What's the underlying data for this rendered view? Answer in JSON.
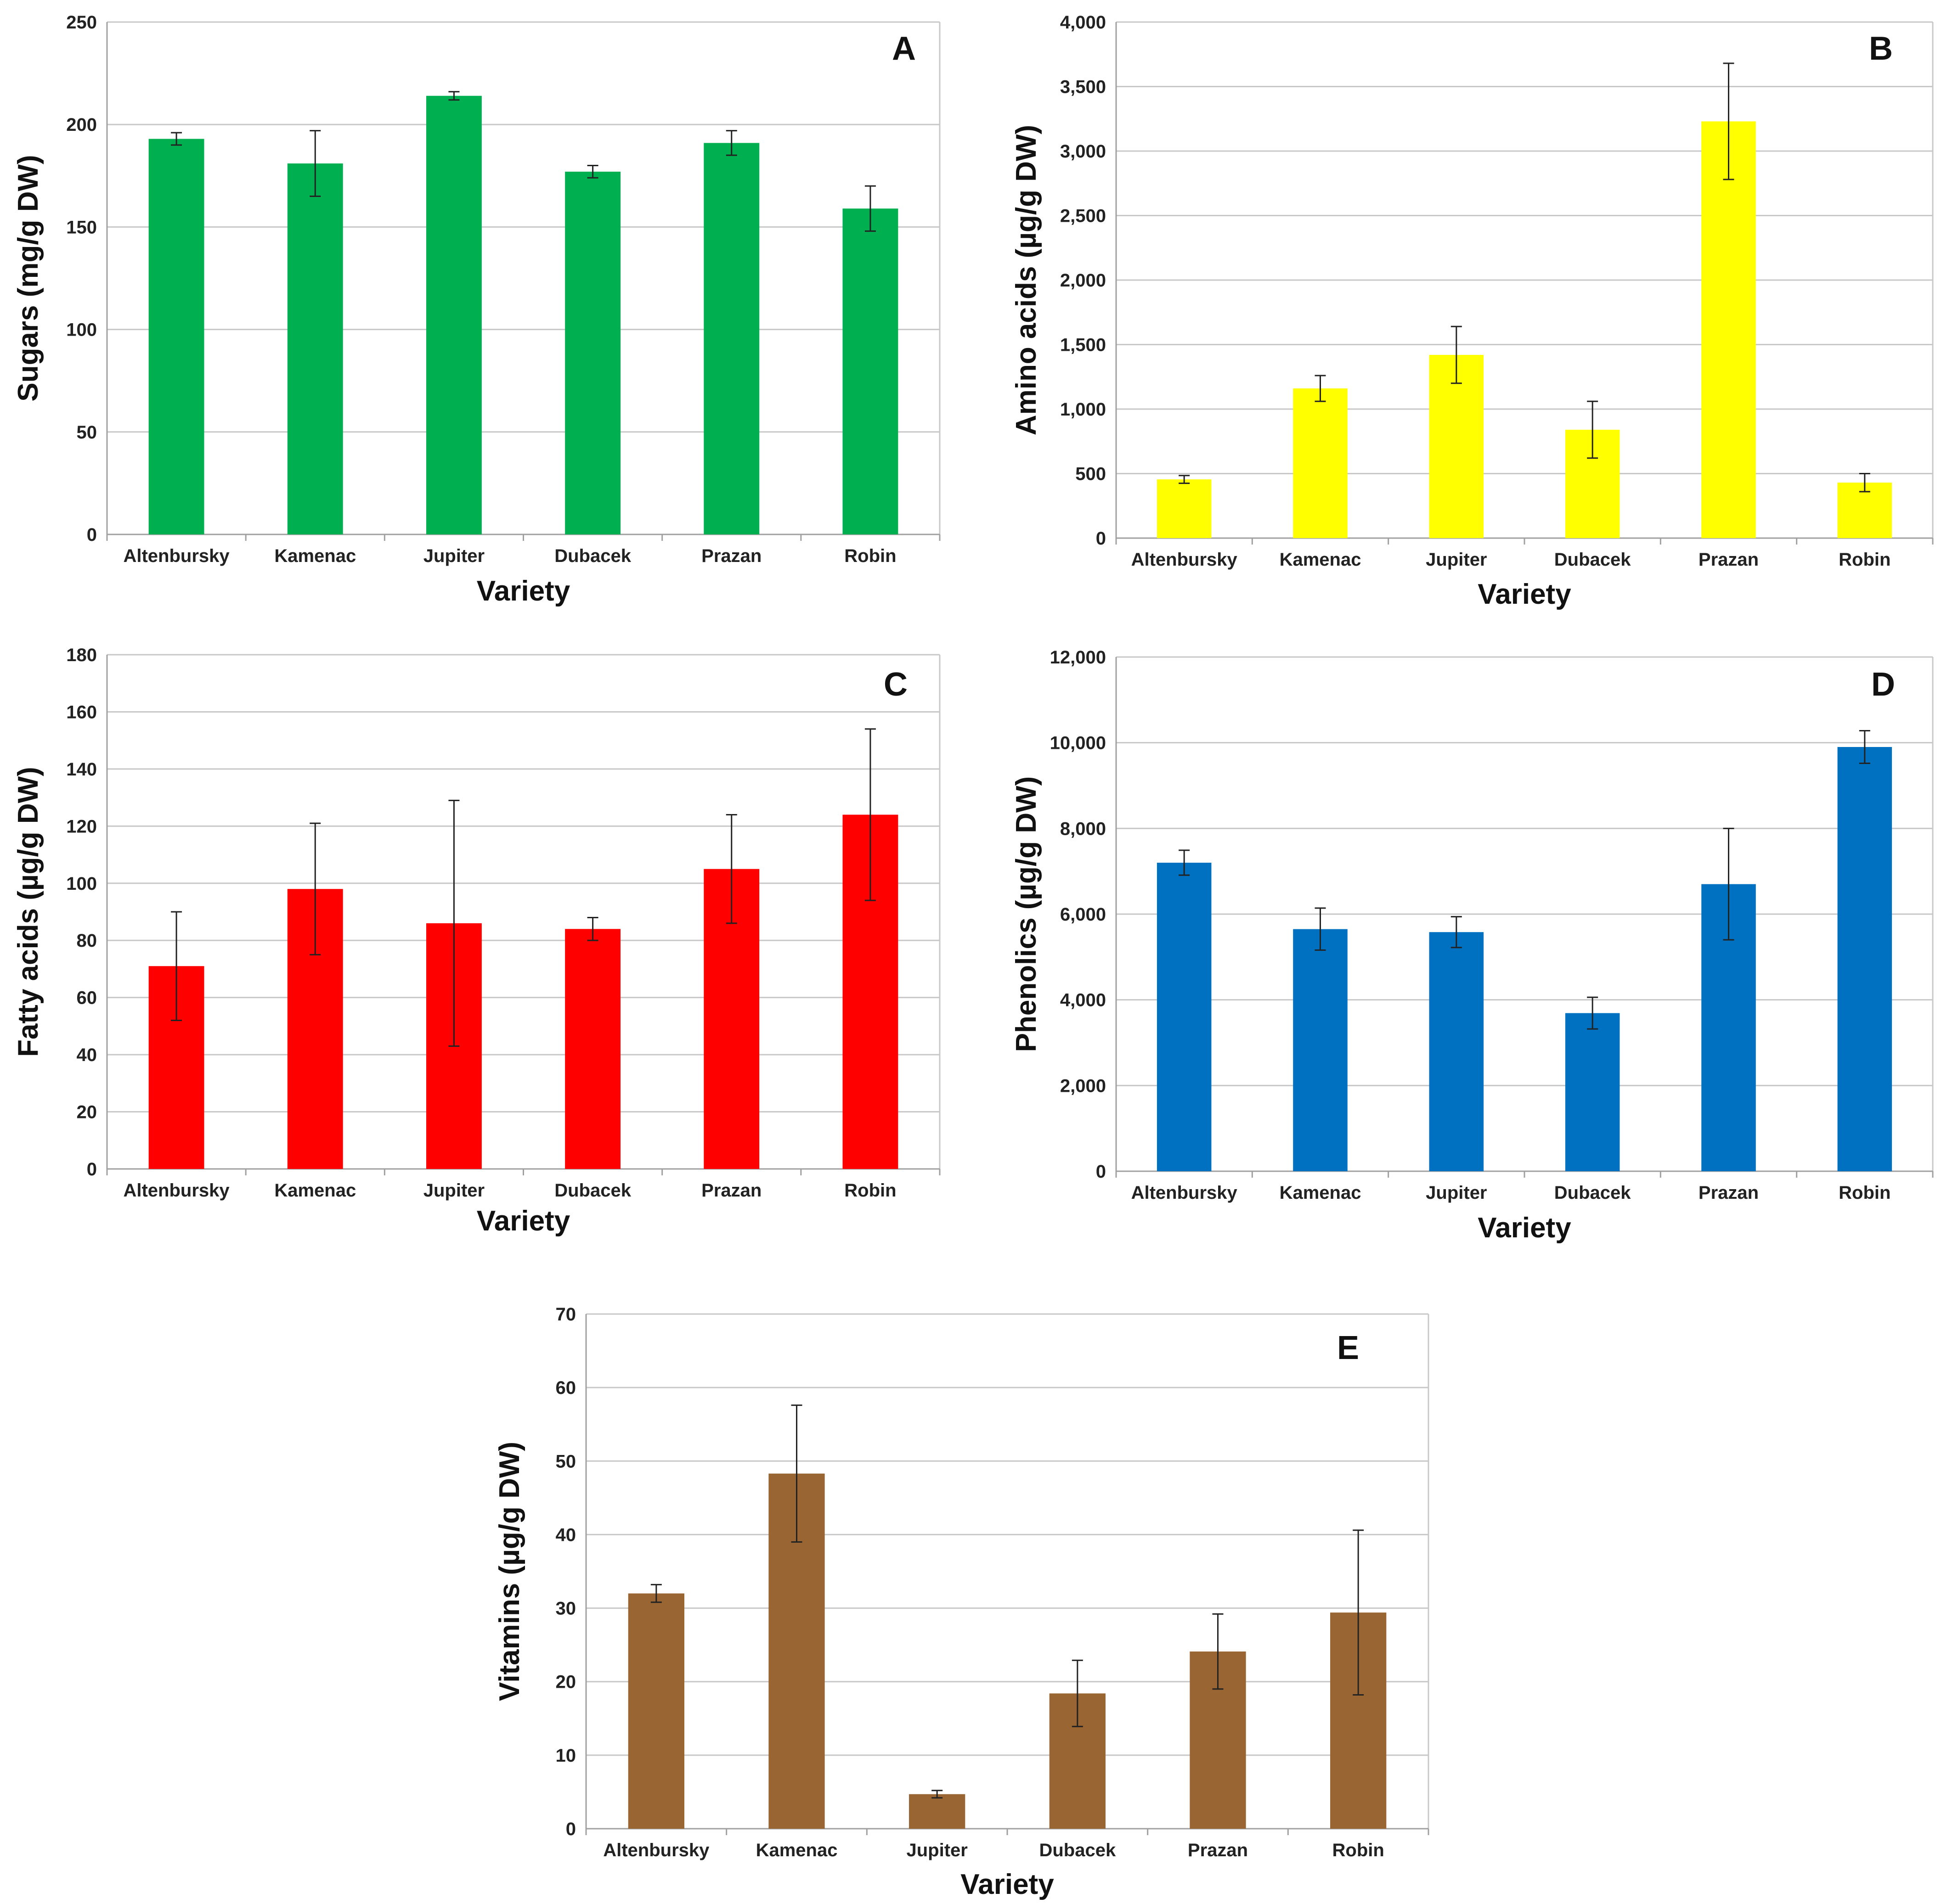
{
  "chart_data": [
    {
      "type": "bar",
      "panel": "A",
      "categories": [
        "Altenbursky",
        "Kamenac",
        "Jupiter",
        "Dubacek",
        "Prazan",
        "Robin"
      ],
      "values": [
        193,
        181,
        214,
        177,
        191,
        159
      ],
      "errors": [
        3,
        16,
        2,
        3,
        6,
        11
      ],
      "color": "#00b050",
      "xlabel": "Variety",
      "ylabel": "Sugars (mg/g DW)",
      "ylim": [
        0,
        250
      ],
      "yticks": [
        "0",
        "50",
        "100",
        "150",
        "200",
        "250"
      ],
      "grid": true
    },
    {
      "type": "bar",
      "panel": "B",
      "categories": [
        "Altenbursky",
        "Kamenac",
        "Jupiter",
        "Dubacek",
        "Prazan",
        "Robin"
      ],
      "values": [
        455,
        1160,
        1420,
        840,
        3230,
        430
      ],
      "errors": [
        30,
        100,
        220,
        220,
        450,
        70
      ],
      "color": "#ffff00",
      "xlabel": "Variety",
      "ylabel": "Amino acids (µg/g DW)",
      "ylim": [
        0,
        4000
      ],
      "yticks": [
        "0",
        "500",
        "1,000",
        "1,500",
        "2,000",
        "2,500",
        "3,000",
        "3,500",
        "4,000"
      ],
      "grid": true
    },
    {
      "type": "bar",
      "panel": "C",
      "categories": [
        "Altenbursky",
        "Kamenac",
        "Jupiter",
        "Dubacek",
        "Prazan",
        "Robin"
      ],
      "values": [
        71,
        98,
        86,
        84,
        105,
        124
      ],
      "errors": [
        19,
        23,
        43,
        4,
        19,
        30
      ],
      "color": "#ff0000",
      "xlabel": "Variety",
      "ylabel": "Fatty acids (µg/g DW)",
      "ylim": [
        0,
        180
      ],
      "yticks": [
        "0",
        "20",
        "40",
        "60",
        "80",
        "100",
        "120",
        "140",
        "160",
        "180"
      ],
      "grid": true
    },
    {
      "type": "bar",
      "panel": "D",
      "categories": [
        "Altenbursky",
        "Kamenac",
        "Jupiter",
        "Dubacek",
        "Prazan",
        "Robin"
      ],
      "values": [
        7200,
        5650,
        5580,
        3690,
        6700,
        9900
      ],
      "errors": [
        290,
        490,
        360,
        370,
        1300,
        380
      ],
      "color": "#0070c0",
      "xlabel": "Variety",
      "ylabel": "Phenolics (µg/g DW)",
      "ylim": [
        0,
        12000
      ],
      "yticks": [
        "0",
        "2,000",
        "4,000",
        "6,000",
        "8,000",
        "10,000",
        "12,000"
      ],
      "grid": true
    },
    {
      "type": "bar",
      "panel": "E",
      "categories": [
        "Altenbursky",
        "Kamenac",
        "Jupiter",
        "Dubacek",
        "Prazan",
        "Robin"
      ],
      "values": [
        32,
        48.3,
        4.7,
        18.4,
        24.1,
        29.4
      ],
      "errors": [
        1.2,
        9.3,
        0.5,
        4.5,
        5.1,
        11.2
      ],
      "color": "#996633",
      "xlabel": "Variety",
      "ylabel": "Vitamins (µg/g DW)",
      "ylim": [
        0,
        70
      ],
      "yticks": [
        "0",
        "10",
        "20",
        "30",
        "40",
        "50",
        "60",
        "70"
      ],
      "grid": true
    }
  ]
}
